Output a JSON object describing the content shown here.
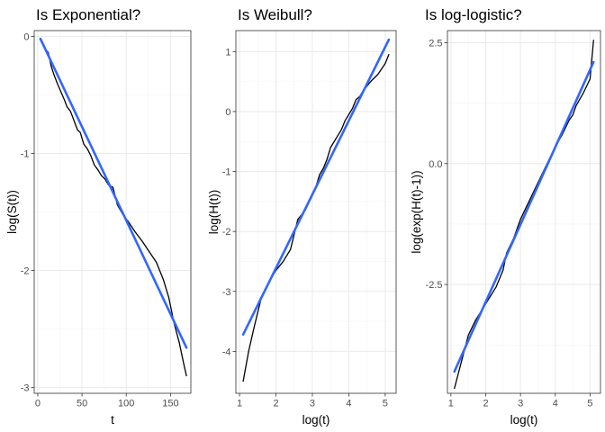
{
  "colors": {
    "observed": "#000000",
    "fit": "#3366FF",
    "grid_major": "#EBEBEB",
    "grid_minor": "#F4F4F4",
    "border": "#333333"
  },
  "chart_data": [
    {
      "type": "line",
      "title": "Is Exponential?",
      "xlabel": "t",
      "ylabel": "log(S(t))",
      "xlim": [
        -4,
        173
      ],
      "ylim": [
        -3.05,
        0.05
      ],
      "xticks": [
        0,
        50,
        100,
        150
      ],
      "xtick_labels": [
        "0",
        "50",
        "100",
        "150"
      ],
      "xminor": [
        25,
        75,
        125
      ],
      "yticks": [
        -3,
        -2,
        -1,
        0
      ],
      "ytick_labels": [
        "-3",
        "-2",
        "-1",
        "0"
      ],
      "yminor": [
        -2.5,
        -1.5,
        -0.5
      ],
      "grid": true,
      "series": [
        {
          "role": "observed",
          "x": [
            3,
            8,
            12,
            15,
            18,
            22,
            26,
            30,
            33,
            37,
            41,
            45,
            48,
            52,
            56,
            60,
            64,
            68,
            72,
            76,
            80,
            85,
            90,
            96,
            102,
            110,
            118,
            126,
            134,
            142,
            148,
            154,
            160,
            165,
            168
          ],
          "y": [
            -0.03,
            -0.1,
            -0.14,
            -0.25,
            -0.32,
            -0.4,
            -0.47,
            -0.54,
            -0.6,
            -0.64,
            -0.72,
            -0.8,
            -0.82,
            -0.92,
            -0.96,
            -1.02,
            -1.1,
            -1.14,
            -1.19,
            -1.22,
            -1.27,
            -1.29,
            -1.44,
            -1.52,
            -1.58,
            -1.67,
            -1.75,
            -1.84,
            -1.93,
            -2.08,
            -2.23,
            -2.45,
            -2.62,
            -2.8,
            -2.9
          ]
        },
        {
          "role": "fit",
          "x": [
            3,
            168
          ],
          "y": [
            -0.02,
            -2.66
          ]
        }
      ]
    },
    {
      "type": "line",
      "title": "Is Weibull?",
      "xlabel": "log(t)",
      "ylabel": "log(H(t))",
      "xlim": [
        0.9,
        5.3
      ],
      "ylim": [
        -4.7,
        1.35
      ],
      "xticks": [
        1,
        2,
        3,
        4,
        5
      ],
      "xtick_labels": [
        "1",
        "2",
        "3",
        "4",
        "5"
      ],
      "xminor": [
        1.5,
        2.5,
        3.5,
        4.5
      ],
      "yticks": [
        -4,
        -3,
        -2,
        -1,
        0,
        1
      ],
      "ytick_labels": [
        "-4",
        "-3",
        "-2",
        "-1",
        "0",
        "1"
      ],
      "yminor": [
        -3.5,
        -2.5,
        -1.5,
        -0.5,
        0.5
      ],
      "grid": true,
      "series": [
        {
          "role": "observed",
          "x": [
            1.1,
            1.25,
            1.4,
            1.6,
            1.8,
            2.0,
            2.2,
            2.4,
            2.5,
            2.6,
            2.8,
            3.0,
            3.1,
            3.2,
            3.3,
            3.4,
            3.5,
            3.6,
            3.7,
            3.8,
            3.9,
            4.0,
            4.1,
            4.2,
            4.3,
            4.4,
            4.6,
            4.8,
            5.0,
            5.1
          ],
          "y": [
            -4.5,
            -4.0,
            -3.6,
            -3.1,
            -2.85,
            -2.65,
            -2.5,
            -2.3,
            -2.05,
            -1.8,
            -1.65,
            -1.4,
            -1.25,
            -1.05,
            -0.95,
            -0.8,
            -0.6,
            -0.5,
            -0.4,
            -0.3,
            -0.15,
            -0.05,
            0.05,
            0.2,
            0.25,
            0.35,
            0.5,
            0.62,
            0.8,
            0.95
          ]
        },
        {
          "role": "fit",
          "x": [
            1.1,
            5.1
          ],
          "y": [
            -3.72,
            1.2
          ]
        }
      ]
    },
    {
      "type": "line",
      "title": "Is log-logistic?",
      "xlabel": "log(t)",
      "ylabel": "log(exp(H(t)-1))",
      "xlim": [
        0.9,
        5.3
      ],
      "ylim": [
        -4.75,
        2.75
      ],
      "xticks": [
        1,
        2,
        3,
        4,
        5
      ],
      "xtick_labels": [
        "1",
        "2",
        "3",
        "4",
        "5"
      ],
      "xminor": [
        1.5,
        2.5,
        3.5,
        4.5
      ],
      "yticks": [
        -2.5,
        0,
        2.5
      ],
      "ytick_labels": [
        "-2.5",
        "0.0",
        "2.5"
      ],
      "yminor": [
        -3.75,
        -1.25,
        1.25
      ],
      "grid": true,
      "series": [
        {
          "role": "observed",
          "x": [
            1.1,
            1.3,
            1.5,
            1.7,
            2.0,
            2.3,
            2.5,
            2.6,
            2.8,
            3.0,
            3.2,
            3.4,
            3.6,
            3.8,
            4.0,
            4.2,
            4.4,
            4.5,
            4.6,
            4.8,
            5.0,
            5.1
          ],
          "y": [
            -4.65,
            -4.1,
            -3.55,
            -3.25,
            -2.9,
            -2.55,
            -2.2,
            -1.85,
            -1.55,
            -1.15,
            -0.85,
            -0.55,
            -0.25,
            0.05,
            0.35,
            0.6,
            0.9,
            1.0,
            1.2,
            1.45,
            1.75,
            2.55
          ]
        },
        {
          "role": "fit",
          "x": [
            1.1,
            5.1
          ],
          "y": [
            -4.3,
            2.1
          ]
        }
      ]
    }
  ]
}
